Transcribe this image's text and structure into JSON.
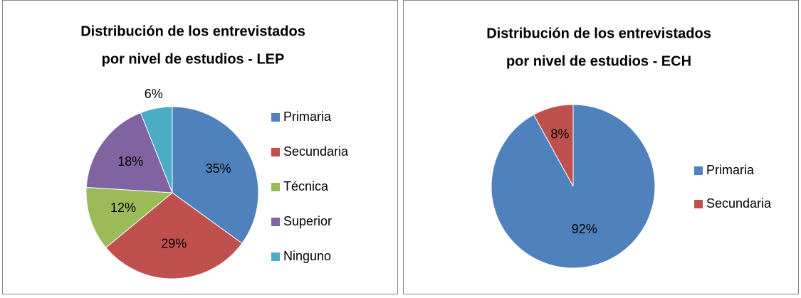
{
  "chart_data": [
    {
      "type": "pie",
      "title": [
        "Distribución de los entrevistados",
        "por nivel de estudios - LEP"
      ],
      "categories": [
        "Primaria",
        "Secundaria",
        "Técnica",
        "Superior",
        "Ninguno"
      ],
      "values": [
        35,
        29,
        12,
        18,
        6
      ],
      "value_labels": [
        "35%",
        "29%",
        "12%",
        "18%",
        "6%"
      ],
      "colors": [
        "#4f81bd",
        "#c0504d",
        "#9bbb59",
        "#8064a2",
        "#4bacc6"
      ],
      "legend": "right"
    },
    {
      "type": "pie",
      "title": [
        "Distribución de los entrevistados",
        "por nivel de estudios - ECH"
      ],
      "categories": [
        "Primaria",
        "Secundaria"
      ],
      "values": [
        92,
        8
      ],
      "value_labels": [
        "92%",
        "8%"
      ],
      "colors": [
        "#4f81bd",
        "#c0504d"
      ],
      "legend": "right"
    }
  ]
}
